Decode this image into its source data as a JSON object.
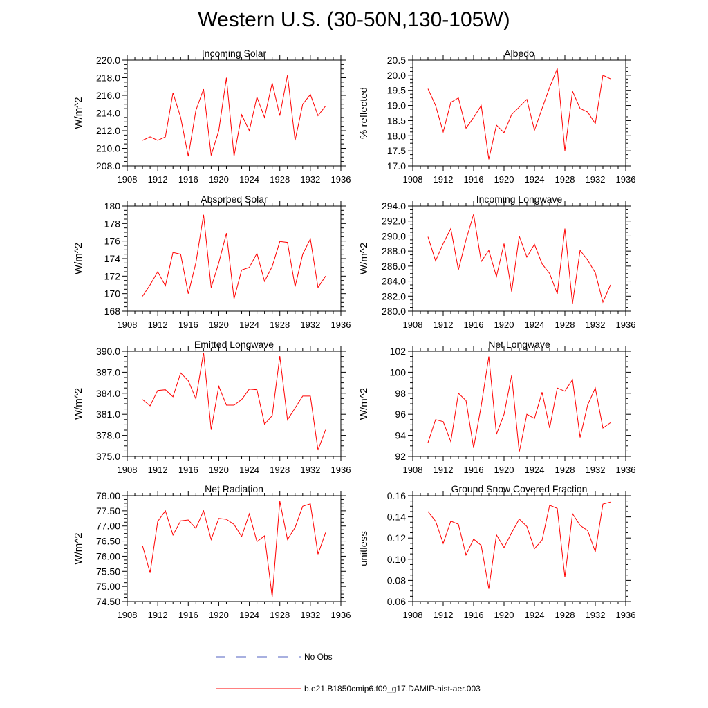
{
  "title": "Western U.S. (30-50N,130-105W)",
  "colors": {
    "model_line": "#ff0000",
    "obs_line": "#5060c0",
    "axis": "#000000"
  },
  "legend": {
    "obs_label": "No Obs",
    "model_label": "b.e21.B1850cmip6.f09_g17.DAMIP-hist-aer.003"
  },
  "chart_data": [
    {
      "type": "line",
      "title": "Incoming Solar",
      "ylabel": "W/m^2",
      "xlim": [
        1908,
        1936
      ],
      "xticks": [
        1908,
        1912,
        1916,
        1920,
        1924,
        1928,
        1932,
        1936
      ],
      "ylim": [
        208,
        220
      ],
      "yticks": [
        208,
        210,
        212,
        214,
        216,
        218,
        220
      ],
      "ydecimals": 1,
      "x": [
        1910,
        1911,
        1912,
        1913,
        1914,
        1915,
        1916,
        1917,
        1918,
        1919,
        1920,
        1921,
        1922,
        1923,
        1924,
        1925,
        1926,
        1927,
        1928,
        1929,
        1930,
        1931,
        1932,
        1933,
        1934
      ],
      "series": [
        {
          "name": "b.e21.B1850cmip6.f09_g17.DAMIP-hist-aer.003",
          "values": [
            210.9,
            211.3,
            210.9,
            211.3,
            216.3,
            213.5,
            209.1,
            214.3,
            216.7,
            209.2,
            212.0,
            218.0,
            209.1,
            213.8,
            212.0,
            215.8,
            213.5,
            217.4,
            213.7,
            218.3,
            210.9,
            215.0,
            216.1,
            213.7,
            214.8
          ]
        }
      ]
    },
    {
      "type": "line",
      "title": "Albedo",
      "ylabel": "% reflected",
      "xlim": [
        1908,
        1936
      ],
      "xticks": [
        1908,
        1912,
        1916,
        1920,
        1924,
        1928,
        1932,
        1936
      ],
      "ylim": [
        17.0,
        20.5
      ],
      "yticks": [
        17.0,
        17.5,
        18.0,
        18.5,
        19.0,
        19.5,
        20.0,
        20.5
      ],
      "ydecimals": 1,
      "x": [
        1910,
        1911,
        1912,
        1913,
        1914,
        1915,
        1916,
        1917,
        1918,
        1919,
        1920,
        1921,
        1922,
        1923,
        1924,
        1925,
        1926,
        1927,
        1928,
        1929,
        1930,
        1931,
        1932,
        1933,
        1934
      ],
      "series": [
        {
          "name": "b.e21.B1850cmip6.f09_g17.DAMIP-hist-aer.003",
          "values": [
            19.55,
            19.0,
            18.12,
            19.1,
            19.25,
            18.25,
            18.6,
            19.0,
            17.22,
            18.35,
            18.1,
            18.7,
            18.95,
            19.2,
            18.18,
            18.9,
            19.6,
            20.22,
            17.5,
            19.47,
            18.9,
            18.78,
            18.4,
            20.0,
            19.88
          ]
        }
      ]
    },
    {
      "type": "line",
      "title": "Absorbed Solar",
      "ylabel": "W/m^2",
      "xlim": [
        1908,
        1936
      ],
      "xticks": [
        1908,
        1912,
        1916,
        1920,
        1924,
        1928,
        1932,
        1936
      ],
      "ylim": [
        168,
        180
      ],
      "yticks": [
        168,
        170,
        172,
        174,
        176,
        178,
        180
      ],
      "ydecimals": 0,
      "x": [
        1910,
        1911,
        1912,
        1913,
        1914,
        1915,
        1916,
        1917,
        1918,
        1919,
        1920,
        1921,
        1922,
        1923,
        1924,
        1925,
        1926,
        1927,
        1928,
        1929,
        1930,
        1931,
        1932,
        1933,
        1934
      ],
      "series": [
        {
          "name": "b.e21.B1850cmip6.f09_g17.DAMIP-hist-aer.003",
          "values": [
            169.7,
            171.0,
            172.5,
            170.9,
            174.7,
            174.5,
            170.0,
            173.5,
            179.0,
            170.7,
            173.5,
            176.9,
            169.4,
            172.7,
            173.0,
            174.6,
            171.4,
            173.1,
            175.95,
            175.85,
            170.8,
            174.5,
            176.25,
            170.7,
            172.0
          ]
        }
      ]
    },
    {
      "type": "line",
      "title": "Incoming Longwave",
      "ylabel": "W/m^2",
      "xlim": [
        1908,
        1936
      ],
      "xticks": [
        1908,
        1912,
        1916,
        1920,
        1924,
        1928,
        1932,
        1936
      ],
      "ylim": [
        280,
        294
      ],
      "yticks": [
        280,
        282,
        284,
        286,
        288,
        290,
        292,
        294
      ],
      "ydecimals": 1,
      "x": [
        1910,
        1911,
        1912,
        1913,
        1914,
        1915,
        1916,
        1917,
        1918,
        1919,
        1920,
        1921,
        1922,
        1923,
        1924,
        1925,
        1926,
        1927,
        1928,
        1929,
        1930,
        1931,
        1932,
        1933,
        1934
      ],
      "series": [
        {
          "name": "b.e21.B1850cmip6.f09_g17.DAMIP-hist-aer.003",
          "values": [
            289.9,
            286.7,
            289.0,
            291.0,
            285.5,
            289.5,
            292.9,
            286.6,
            288.1,
            284.6,
            289.0,
            282.6,
            290.0,
            287.2,
            288.9,
            286.3,
            285.0,
            282.3,
            291.0,
            281.0,
            288.1,
            286.8,
            285.1,
            281.2,
            283.5
          ]
        }
      ]
    },
    {
      "type": "line",
      "title": "Emitted Longwave",
      "ylabel": "W/m^2",
      "xlim": [
        1908,
        1936
      ],
      "xticks": [
        1908,
        1912,
        1916,
        1920,
        1924,
        1928,
        1932,
        1936
      ],
      "ylim": [
        375,
        390
      ],
      "yticks": [
        375,
        378,
        381,
        384,
        387,
        390
      ],
      "ydecimals": 1,
      "x": [
        1910,
        1911,
        1912,
        1913,
        1914,
        1915,
        1916,
        1917,
        1918,
        1919,
        1920,
        1921,
        1922,
        1923,
        1924,
        1925,
        1926,
        1927,
        1928,
        1929,
        1930,
        1931,
        1932,
        1933,
        1934
      ],
      "series": [
        {
          "name": "b.e21.B1850cmip6.f09_g17.DAMIP-hist-aer.003",
          "values": [
            383.1,
            382.2,
            384.4,
            384.5,
            383.5,
            386.9,
            385.8,
            383.2,
            389.8,
            378.8,
            385.0,
            382.3,
            382.3,
            383.1,
            384.6,
            384.5,
            379.6,
            380.8,
            389.3,
            380.2,
            381.9,
            383.6,
            383.6,
            375.9,
            378.8
          ]
        }
      ]
    },
    {
      "type": "line",
      "title": "Net Longwave",
      "ylabel": "W/m^2",
      "xlim": [
        1908,
        1936
      ],
      "xticks": [
        1908,
        1912,
        1916,
        1920,
        1924,
        1928,
        1932,
        1936
      ],
      "ylim": [
        92,
        102
      ],
      "yticks": [
        92,
        94,
        96,
        98,
        100,
        102
      ],
      "ydecimals": 0,
      "x": [
        1910,
        1911,
        1912,
        1913,
        1914,
        1915,
        1916,
        1917,
        1918,
        1919,
        1920,
        1921,
        1922,
        1923,
        1924,
        1925,
        1926,
        1927,
        1928,
        1929,
        1930,
        1931,
        1932,
        1933,
        1934
      ],
      "series": [
        {
          "name": "b.e21.B1850cmip6.f09_g17.DAMIP-hist-aer.003",
          "values": [
            93.3,
            95.5,
            95.3,
            93.4,
            98.0,
            97.3,
            92.8,
            96.8,
            101.5,
            94.1,
            96.0,
            99.7,
            92.4,
            96.0,
            95.6,
            98.1,
            94.7,
            98.5,
            98.2,
            99.3,
            93.8,
            96.9,
            98.5,
            94.7,
            95.2
          ]
        }
      ]
    },
    {
      "type": "line",
      "title": "Net Radiation",
      "ylabel": "W/m^2",
      "xlim": [
        1908,
        1936
      ],
      "xticks": [
        1908,
        1912,
        1916,
        1920,
        1924,
        1928,
        1932,
        1936
      ],
      "ylim": [
        74.5,
        78.0
      ],
      "yticks": [
        74.5,
        75.0,
        75.5,
        76.0,
        76.5,
        77.0,
        77.5,
        78.0
      ],
      "ydecimals": 2,
      "x": [
        1910,
        1911,
        1912,
        1913,
        1914,
        1915,
        1916,
        1917,
        1918,
        1919,
        1920,
        1921,
        1922,
        1923,
        1924,
        1925,
        1926,
        1927,
        1928,
        1929,
        1930,
        1931,
        1932,
        1933,
        1934
      ],
      "series": [
        {
          "name": "b.e21.B1850cmip6.f09_g17.DAMIP-hist-aer.003",
          "values": [
            76.35,
            75.45,
            77.15,
            77.5,
            76.7,
            77.17,
            77.2,
            76.92,
            77.5,
            76.55,
            77.25,
            77.22,
            77.05,
            76.65,
            77.4,
            76.48,
            76.67,
            74.65,
            77.82,
            76.55,
            76.95,
            77.65,
            77.73,
            76.07,
            76.78
          ]
        }
      ]
    },
    {
      "type": "line",
      "title": "Ground Snow Covered Fraction",
      "ylabel": "unitless",
      "xlim": [
        1908,
        1936
      ],
      "xticks": [
        1908,
        1912,
        1916,
        1920,
        1924,
        1928,
        1932,
        1936
      ],
      "ylim": [
        0.06,
        0.16
      ],
      "yticks": [
        0.06,
        0.08,
        0.1,
        0.12,
        0.14,
        0.16
      ],
      "ydecimals": 2,
      "x": [
        1910,
        1911,
        1912,
        1913,
        1914,
        1915,
        1916,
        1917,
        1918,
        1919,
        1920,
        1921,
        1922,
        1923,
        1924,
        1925,
        1926,
        1927,
        1928,
        1929,
        1930,
        1931,
        1932,
        1933,
        1934
      ],
      "series": [
        {
          "name": "b.e21.B1850cmip6.f09_g17.DAMIP-hist-aer.003",
          "values": [
            0.145,
            0.136,
            0.115,
            0.136,
            0.133,
            0.104,
            0.119,
            0.113,
            0.072,
            0.123,
            0.111,
            0.125,
            0.138,
            0.131,
            0.11,
            0.118,
            0.151,
            0.148,
            0.083,
            0.143,
            0.132,
            0.127,
            0.107,
            0.152,
            0.154
          ]
        }
      ]
    }
  ]
}
